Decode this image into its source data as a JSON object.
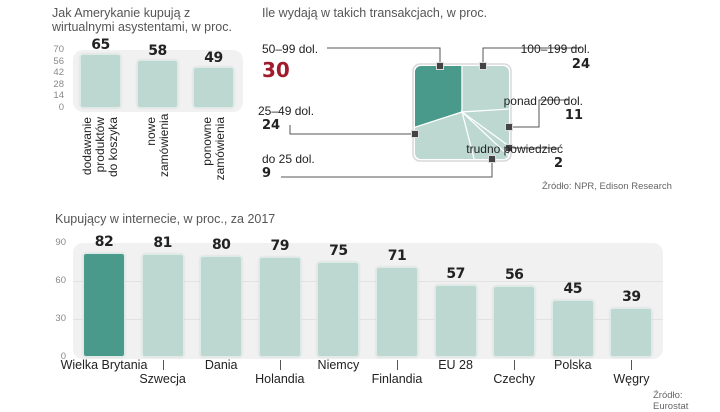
{
  "chart_data": [
    {
      "type": "bar",
      "title": "Jak Amerykanie kupują z wirtualnymi asystentami, w proc.",
      "categories": [
        "dodawanie produktów do koszyka",
        "nowe zamówienia",
        "ponowne zamówienia"
      ],
      "category_lines": [
        [
          "dodawanie",
          "produktów",
          "do koszyka"
        ],
        [
          "nowe",
          "zamówienia"
        ],
        [
          "ponowne",
          "zamówienia"
        ]
      ],
      "values": [
        65,
        58,
        49
      ],
      "yticks": [
        "0",
        "14",
        "28",
        "42",
        "56",
        "70"
      ],
      "ylim": [
        0,
        70
      ],
      "xlabel": "",
      "ylabel": "",
      "color": "#bcd8d1"
    },
    {
      "type": "pie",
      "title": "Ile wydają w takich transakcjach, w proc.",
      "slices": [
        {
          "label": "50–99 dol.",
          "value": 30,
          "highlight": true
        },
        {
          "label": "100–199 dol.",
          "value": 24
        },
        {
          "label": "ponad 200 dol.",
          "value": 11
        },
        {
          "label": "trudno powiedzieć",
          "value": 2
        },
        {
          "label": "do 25 dol.",
          "value": 9
        },
        {
          "label": "25–49 dol.",
          "value": 24
        }
      ],
      "source": "Źródło: NPR, Edison Research",
      "colors": {
        "highlight": "#4a9a8b",
        "base": "#bcd8d1",
        "highlight_value_text": "#a01c2c"
      }
    },
    {
      "type": "bar",
      "title": "Kupujący w internecie, w proc., za 2017",
      "categories": [
        "Wielka Brytania",
        "Szwecja",
        "Dania",
        "Holandia",
        "Niemcy",
        "Finlandia",
        "EU 28",
        "Czechy",
        "Polska",
        "Węgry"
      ],
      "values": [
        82,
        81,
        80,
        79,
        75,
        71,
        57,
        56,
        45,
        39
      ],
      "highlight_index": 0,
      "yticks": [
        "0",
        "30",
        "60",
        "90"
      ],
      "ylim": [
        0,
        90
      ],
      "xlabel": "",
      "ylabel": "",
      "source": "Źródło: Eurostat",
      "colors": {
        "highlight": "#4a9a8b",
        "base": "#bcd8d1"
      }
    }
  ]
}
